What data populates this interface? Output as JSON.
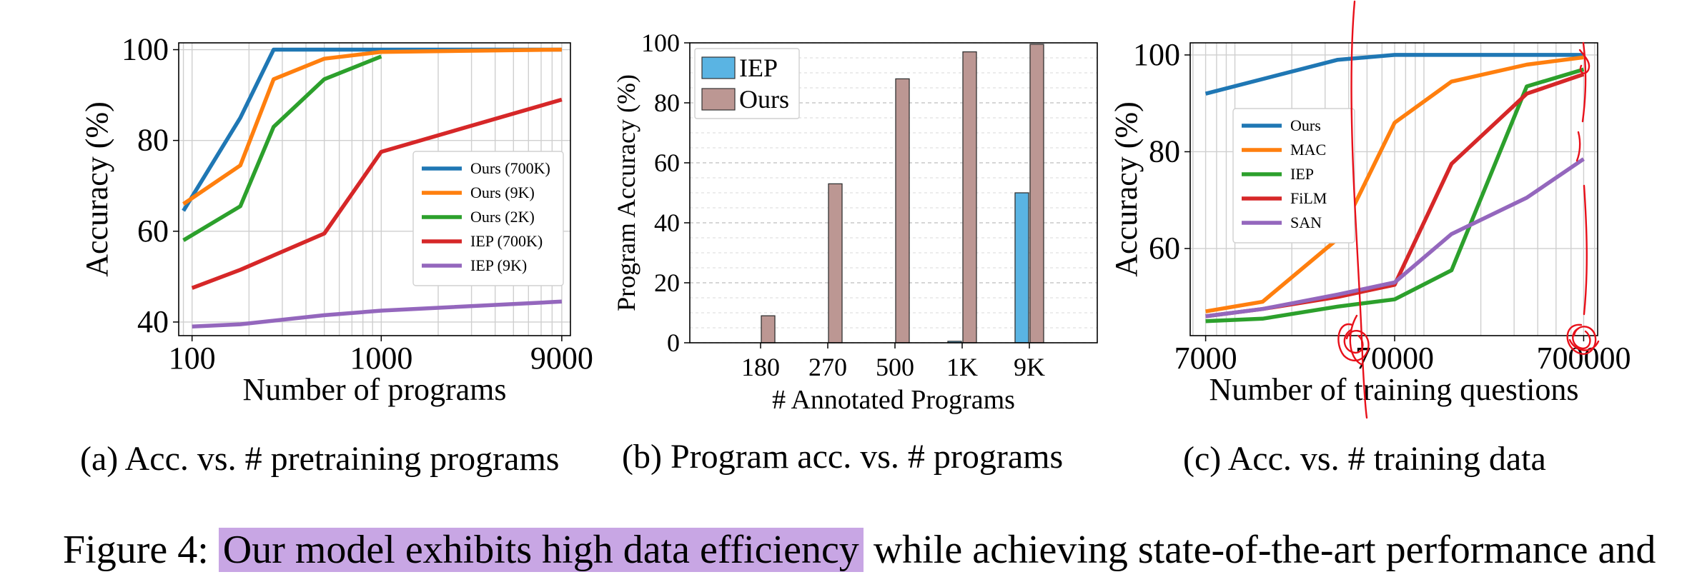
{
  "figure": {
    "prefix": "Figure 4:",
    "highlight": "Our model exhibits high data efficiency",
    "rest": " while achieving state-of-the-art performance and"
  },
  "captions": {
    "a": "(a) Acc. vs. # pretraining programs",
    "b": "(b) Program acc. vs. # programs",
    "c": "(c) Acc. vs. # training data"
  },
  "colors": {
    "blue": "#1f77b4",
    "orange": "#ff7f0e",
    "green": "#2ca02c",
    "red": "#d62728",
    "purple": "#9467bd",
    "bar_iep": "#5ab4e3",
    "bar_ours": "#bc9793",
    "ink": "#e8101a",
    "highlight": "#c8a6e4"
  },
  "chart_data": [
    {
      "type": "line",
      "xscale": "log",
      "xlim": [
        85,
        10000
      ],
      "ylim": [
        37,
        101.5
      ],
      "xticks": [
        100,
        1000,
        9000
      ],
      "xtick_labels": [
        "100",
        "1000",
        "9000"
      ],
      "yticks": [
        40,
        60,
        80,
        100
      ],
      "ytick_labels": [
        "40",
        "60",
        "80",
        "100"
      ],
      "xlabel": "Number of programs",
      "ylabel": "Accuracy (%)",
      "grid": true,
      "legend": "center-right",
      "series": [
        {
          "name": "Ours (700K)",
          "color": "blue",
          "x": [
            90,
            180,
            270,
            500,
            1000,
            9000
          ],
          "y": [
            64.5,
            85,
            100,
            100,
            100,
            100
          ]
        },
        {
          "name": "Ours (9K)",
          "color": "orange",
          "x": [
            90,
            180,
            270,
            500,
            1000,
            9000
          ],
          "y": [
            66,
            74.5,
            93.5,
            98,
            99.5,
            100
          ]
        },
        {
          "name": "Ours (2K)",
          "color": "green",
          "x": [
            90,
            180,
            270,
            500,
            1000
          ],
          "y": [
            58,
            65.5,
            83,
            93.5,
            98.5
          ]
        },
        {
          "name": "IEP (700K)",
          "color": "red",
          "x": [
            100,
            180,
            500,
            1000,
            9000
          ],
          "y": [
            47.5,
            51.5,
            59.5,
            77.5,
            89
          ]
        },
        {
          "name": "IEP (9K)",
          "color": "purple",
          "x": [
            100,
            180,
            500,
            1000,
            9000
          ],
          "y": [
            39,
            39.5,
            41.5,
            42.5,
            44.5
          ]
        }
      ]
    },
    {
      "type": "bar",
      "categories": [
        "180",
        "270",
        "500",
        "1K",
        "9K"
      ],
      "ylim": [
        0,
        100
      ],
      "yticks": [
        0,
        20,
        40,
        60,
        80,
        100
      ],
      "ytick_labels": [
        "0",
        "20",
        "40",
        "60",
        "80",
        "100"
      ],
      "xlabel": "# Annotated Programs",
      "ylabel": "Program Accuracy (%)",
      "grid": true,
      "legend": "top-left",
      "series": [
        {
          "name": "IEP",
          "color": "bar_iep",
          "values": [
            0,
            0,
            0,
            0.5,
            50
          ]
        },
        {
          "name": "Ours",
          "color": "bar_ours",
          "values": [
            9,
            53,
            88,
            97,
            99.5
          ]
        }
      ]
    },
    {
      "type": "line",
      "xscale": "log",
      "xlim": [
        5800,
        830000
      ],
      "ylim": [
        42,
        102.5
      ],
      "xticks": [
        7000,
        70000,
        700000
      ],
      "xtick_labels": [
        "7000",
        "70000",
        "700000"
      ],
      "yticks": [
        60,
        80,
        100
      ],
      "ytick_labels": [
        "60",
        "80",
        "100"
      ],
      "xlabel": "Number of training questions",
      "ylabel": "Accuracy (%)",
      "grid": true,
      "legend": "center-left",
      "series": [
        {
          "name": "Ours",
          "color": "blue",
          "x": [
            7000,
            35000,
            70000,
            700000
          ],
          "y": [
            92,
            99,
            100,
            100
          ]
        },
        {
          "name": "MAC",
          "color": "orange",
          "x": [
            7000,
            14000,
            35000,
            70000,
            140000,
            350000,
            700000
          ],
          "y": [
            47,
            49,
            62,
            86,
            94.5,
            98,
            99.5
          ]
        },
        {
          "name": "IEP",
          "color": "green",
          "x": [
            7000,
            14000,
            35000,
            70000,
            140000,
            350000,
            700000
          ],
          "y": [
            45,
            45.5,
            48,
            49.5,
            55.5,
            93.5,
            97
          ]
        },
        {
          "name": "FiLM",
          "color": "red",
          "x": [
            7000,
            14000,
            35000,
            70000,
            140000,
            350000,
            700000
          ],
          "y": [
            46,
            47.5,
            50,
            52.5,
            77.5,
            92,
            96
          ]
        },
        {
          "name": "SAN",
          "color": "purple",
          "x": [
            7000,
            14000,
            35000,
            70000,
            140000,
            350000,
            700000
          ],
          "y": [
            46,
            47.5,
            50.5,
            53,
            63,
            70.5,
            78.5
          ]
        }
      ]
    }
  ]
}
